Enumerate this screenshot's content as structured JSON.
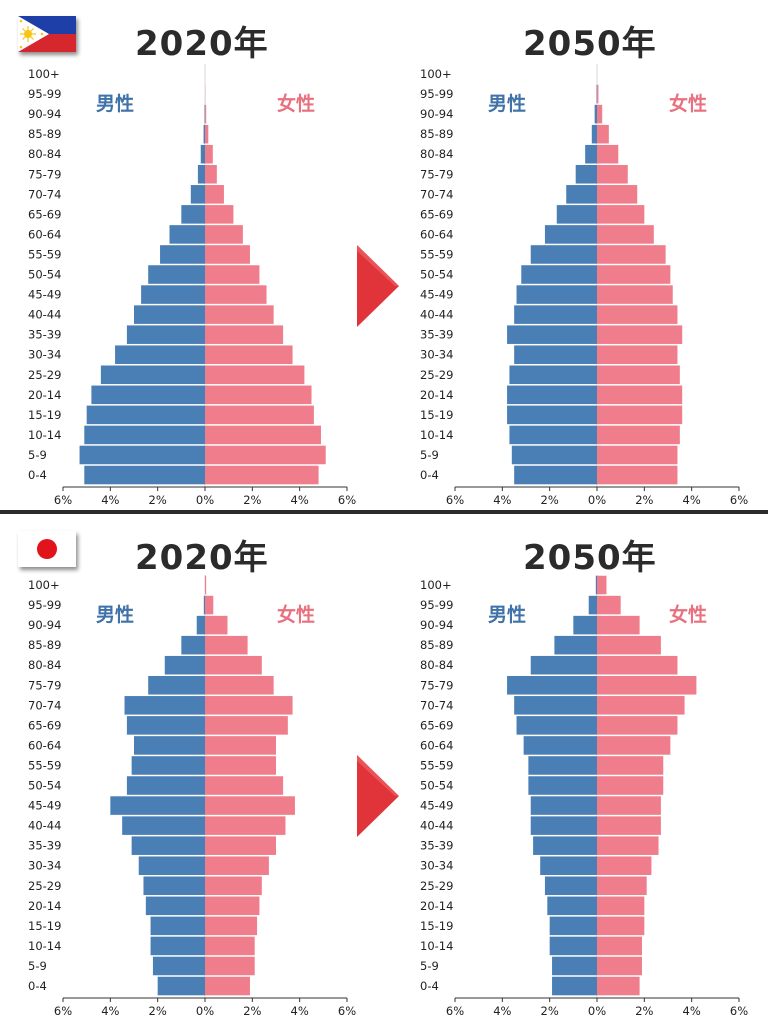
{
  "colors": {
    "male": "#4a7fb5",
    "female": "#f07d8b",
    "male_label": "#3f72a8",
    "female_label": "#e8707f",
    "arrow": "#e0343a"
  },
  "panels": [
    {
      "country_flag_icon": "philippines-flag-icon",
      "left_year": "2020年",
      "right_year": "2050年"
    },
    {
      "country_flag_icon": "japan-flag-icon",
      "left_year": "2020年",
      "right_year": "2050年"
    }
  ],
  "chart_data": [
    {
      "type": "bar",
      "subtype": "population-pyramid",
      "title": "2020年",
      "categories": [
        "0-4",
        "5-9",
        "10-14",
        "15-19",
        "20-14",
        "25-29",
        "30-34",
        "35-39",
        "40-44",
        "45-49",
        "50-54",
        "55-59",
        "60-64",
        "65-69",
        "70-74",
        "75-79",
        "80-84",
        "85-89",
        "90-94",
        "95-99",
        "100+"
      ],
      "series": [
        {
          "name": "男性",
          "values": [
            5.1,
            5.3,
            5.1,
            5.0,
            4.8,
            4.4,
            3.8,
            3.3,
            3.0,
            2.7,
            2.4,
            1.9,
            1.5,
            1.0,
            0.6,
            0.3,
            0.18,
            0.06,
            0.02,
            0.0,
            0.0
          ]
        },
        {
          "name": "女性",
          "values": [
            4.8,
            5.1,
            4.9,
            4.6,
            4.5,
            4.2,
            3.7,
            3.3,
            2.9,
            2.6,
            2.3,
            1.9,
            1.6,
            1.2,
            0.8,
            0.5,
            0.33,
            0.14,
            0.05,
            0.01,
            0.0
          ]
        }
      ],
      "xlim": [
        -6,
        6
      ],
      "xticks": [
        "6%",
        "4%",
        "2%",
        "0%",
        "2%",
        "4%",
        "6%"
      ],
      "xlabel": "",
      "ylabel": ""
    },
    {
      "type": "bar",
      "subtype": "population-pyramid",
      "title": "2050年",
      "categories": [
        "0-4",
        "5-9",
        "10-14",
        "15-19",
        "20-14",
        "25-29",
        "30-34",
        "35-39",
        "40-44",
        "45-49",
        "50-54",
        "55-59",
        "60-64",
        "65-69",
        "70-74",
        "75-79",
        "80-84",
        "85-89",
        "90-94",
        "95-99",
        "100+"
      ],
      "series": [
        {
          "name": "男性",
          "values": [
            3.5,
            3.6,
            3.7,
            3.8,
            3.8,
            3.7,
            3.5,
            3.8,
            3.5,
            3.4,
            3.2,
            2.8,
            2.2,
            1.7,
            1.3,
            0.9,
            0.5,
            0.22,
            0.1,
            0.02,
            0.0
          ]
        },
        {
          "name": "女性",
          "values": [
            3.4,
            3.4,
            3.5,
            3.6,
            3.6,
            3.5,
            3.4,
            3.6,
            3.4,
            3.2,
            3.1,
            2.9,
            2.4,
            2.0,
            1.7,
            1.3,
            0.9,
            0.5,
            0.22,
            0.06,
            0.0
          ]
        }
      ],
      "xlim": [
        -6,
        6
      ],
      "xticks": [
        "6%",
        "4%",
        "2%",
        "0%",
        "2%",
        "4%",
        "6%"
      ],
      "xlabel": "",
      "ylabel": ""
    },
    {
      "type": "bar",
      "subtype": "population-pyramid",
      "title": "2020年",
      "categories": [
        "0-4",
        "5-9",
        "10-14",
        "15-19",
        "20-14",
        "25-29",
        "30-34",
        "35-39",
        "40-44",
        "45-49",
        "50-54",
        "55-59",
        "60-64",
        "65-69",
        "70-74",
        "75-79",
        "80-84",
        "85-89",
        "90-94",
        "95-99",
        "100+"
      ],
      "series": [
        {
          "name": "男性",
          "values": [
            2.0,
            2.2,
            2.3,
            2.3,
            2.5,
            2.6,
            2.8,
            3.1,
            3.5,
            4.0,
            3.3,
            3.1,
            3.0,
            3.3,
            3.4,
            2.4,
            1.7,
            1.0,
            0.35,
            0.05,
            0.0
          ]
        },
        {
          "name": "女性",
          "values": [
            1.9,
            2.1,
            2.1,
            2.2,
            2.3,
            2.4,
            2.7,
            3.0,
            3.4,
            3.8,
            3.3,
            3.0,
            3.0,
            3.5,
            3.7,
            2.9,
            2.4,
            1.8,
            0.95,
            0.35,
            0.05
          ]
        }
      ],
      "xlim": [
        -6,
        6
      ],
      "xticks": [
        "6%",
        "4%",
        "2%",
        "0%",
        "2%",
        "4%",
        "6%"
      ],
      "xlabel": "",
      "ylabel": ""
    },
    {
      "type": "bar",
      "subtype": "population-pyramid",
      "title": "2050年",
      "categories": [
        "0-4",
        "5-9",
        "10-14",
        "15-19",
        "20-14",
        "25-29",
        "30-34",
        "35-39",
        "40-44",
        "45-49",
        "50-54",
        "55-59",
        "60-64",
        "65-69",
        "70-74",
        "75-79",
        "80-84",
        "85-89",
        "90-94",
        "95-99",
        "100+"
      ],
      "series": [
        {
          "name": "男性",
          "values": [
            1.9,
            1.9,
            2.0,
            2.0,
            2.1,
            2.2,
            2.4,
            2.7,
            2.8,
            2.8,
            2.9,
            2.9,
            3.1,
            3.4,
            3.5,
            3.8,
            2.8,
            1.8,
            1.0,
            0.35,
            0.05
          ]
        },
        {
          "name": "女性",
          "values": [
            1.8,
            1.9,
            1.9,
            2.0,
            2.0,
            2.1,
            2.3,
            2.6,
            2.7,
            2.7,
            2.8,
            2.8,
            3.1,
            3.4,
            3.7,
            4.2,
            3.4,
            2.7,
            1.8,
            1.0,
            0.4
          ]
        }
      ],
      "xlim": [
        -6,
        6
      ],
      "xticks": [
        "6%",
        "4%",
        "2%",
        "0%",
        "2%",
        "4%",
        "6%"
      ],
      "xlabel": "",
      "ylabel": ""
    }
  ]
}
